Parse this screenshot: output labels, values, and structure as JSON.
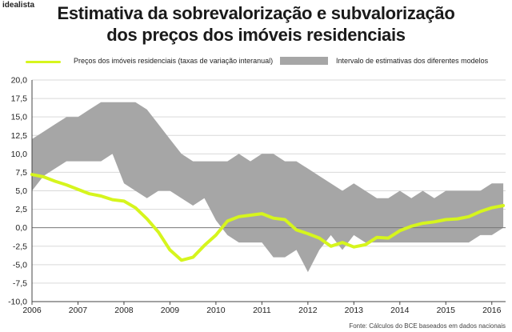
{
  "brand": "idealista",
  "title_line1": "Estimativa da sobrevalorização e subvalorização",
  "title_line2": "dos preços dos imóveis residenciais",
  "source": "Fonte: Cálculos do BCE baseados em dados nacionais",
  "chart_data": {
    "type": "line",
    "title": "Estimativa da sobrevalorização e subvalorização dos preços dos imóveis residenciais",
    "xlabel": "",
    "ylabel": "",
    "xlim": [
      2006,
      2016.3
    ],
    "ylim": [
      -10,
      20
    ],
    "yticks": [
      20,
      17.5,
      15,
      12.5,
      10,
      7.5,
      5,
      2.5,
      0,
      -2.5,
      -5,
      -7.5,
      -10
    ],
    "ytick_labels": [
      "20,0",
      "17,5",
      "15,0",
      "12,5",
      "10,0",
      "7,5",
      "5,0",
      "2,5",
      "0,0",
      "-2,5",
      "-5,0",
      "-7,5",
      "-10,0"
    ],
    "xticks": [
      2006,
      2007,
      2008,
      2009,
      2010,
      2011,
      2012,
      2013,
      2014,
      2015,
      2016
    ],
    "xtick_labels": [
      "2006",
      "2007",
      "2008",
      "2009",
      "2010",
      "2011",
      "2012",
      "2013",
      "2014",
      "2015",
      "2016"
    ],
    "grid": "horizontal",
    "legend_position": "top",
    "series": [
      {
        "name": "Preços dos imóveis residenciais (taxas de variação interanual)",
        "kind": "line",
        "color": "#d6f51d",
        "x": [
          2006,
          2006.25,
          2006.5,
          2006.75,
          2007,
          2007.25,
          2007.5,
          2007.75,
          2008,
          2008.25,
          2008.5,
          2008.75,
          2009,
          2009.25,
          2009.5,
          2009.75,
          2010,
          2010.25,
          2010.5,
          2010.75,
          2011,
          2011.25,
          2011.5,
          2011.75,
          2012,
          2012.25,
          2012.5,
          2012.75,
          2013,
          2013.25,
          2013.5,
          2013.75,
          2014,
          2014.25,
          2014.5,
          2014.75,
          2015,
          2015.25,
          2015.5,
          2015.75,
          2016,
          2016.25
        ],
        "y": [
          7.2,
          6.9,
          6.3,
          5.8,
          5.2,
          4.6,
          4.3,
          3.8,
          3.6,
          2.7,
          1.2,
          -0.6,
          -3.0,
          -4.4,
          -4.0,
          -2.4,
          -1.0,
          0.9,
          1.5,
          1.7,
          1.9,
          1.3,
          1.1,
          -0.3,
          -0.8,
          -1.4,
          -2.5,
          -2.0,
          -2.6,
          -2.3,
          -1.3,
          -1.4,
          -0.4,
          0.2,
          0.6,
          0.8,
          1.1,
          1.2,
          1.5,
          2.2,
          2.7,
          3.0
        ]
      },
      {
        "name": "Intervalo de estimativas dos diferentes modelos",
        "kind": "band",
        "color": "#a6a6a6",
        "x": [
          2006,
          2006.25,
          2006.5,
          2006.75,
          2007,
          2007.25,
          2007.5,
          2007.75,
          2008,
          2008.25,
          2008.5,
          2008.75,
          2009,
          2009.25,
          2009.5,
          2009.75,
          2010,
          2010.25,
          2010.5,
          2010.75,
          2011,
          2011.25,
          2011.5,
          2011.75,
          2012,
          2012.25,
          2012.5,
          2012.75,
          2013,
          2013.25,
          2013.5,
          2013.75,
          2014,
          2014.25,
          2014.5,
          2014.75,
          2015,
          2015.25,
          2015.5,
          2015.75,
          2016,
          2016.25
        ],
        "upper": [
          12,
          13,
          14,
          15,
          15,
          16,
          17,
          17,
          17,
          17,
          16,
          14,
          12,
          10,
          9,
          9,
          9,
          9,
          10,
          9,
          10,
          10,
          9,
          9,
          8,
          7,
          6,
          5,
          6,
          5,
          4,
          4,
          5,
          4,
          5,
          4,
          5,
          5,
          5,
          5,
          6,
          6
        ],
        "lower": [
          5,
          7,
          8,
          9,
          9,
          9,
          9,
          10,
          6,
          5,
          4,
          5,
          5,
          4,
          3,
          4,
          1,
          -1,
          -2,
          -2,
          -2,
          -4,
          -4,
          -3,
          -6,
          -3,
          -1,
          -3,
          -1,
          -2,
          -2,
          -2,
          -2,
          -2,
          -2,
          -2,
          -2,
          -2,
          -2,
          -1,
          -1,
          0
        ]
      }
    ]
  }
}
